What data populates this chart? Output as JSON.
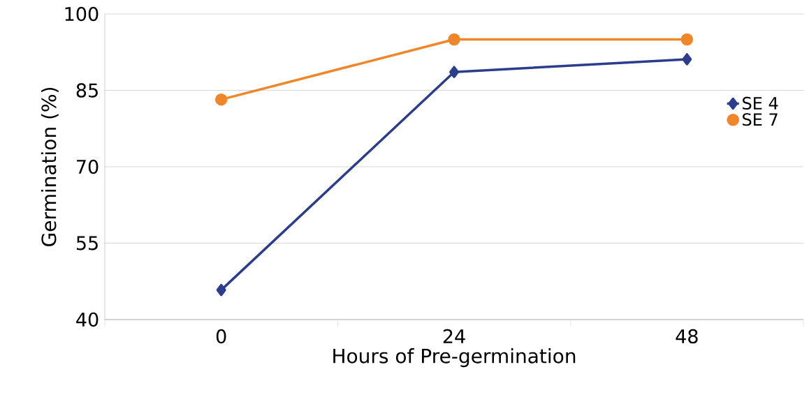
{
  "chart_data": {
    "type": "line",
    "xlabel": "Hours of Pre-germination",
    "ylabel": "Germination (%)",
    "categories": [
      "0",
      "24",
      "48"
    ],
    "series": [
      {
        "name": "SE 4",
        "color": "#2b3d8c",
        "marker": "diamond",
        "values": [
          45.8,
          88.6,
          91.1
        ]
      },
      {
        "name": "SE 7",
        "color": "#f0862a",
        "marker": "circle",
        "values": [
          83.2,
          95,
          95
        ]
      }
    ],
    "ylim": [
      40,
      100
    ],
    "yticks": [
      40,
      55,
      70,
      85,
      100
    ],
    "grid": "y",
    "legend": "right"
  }
}
